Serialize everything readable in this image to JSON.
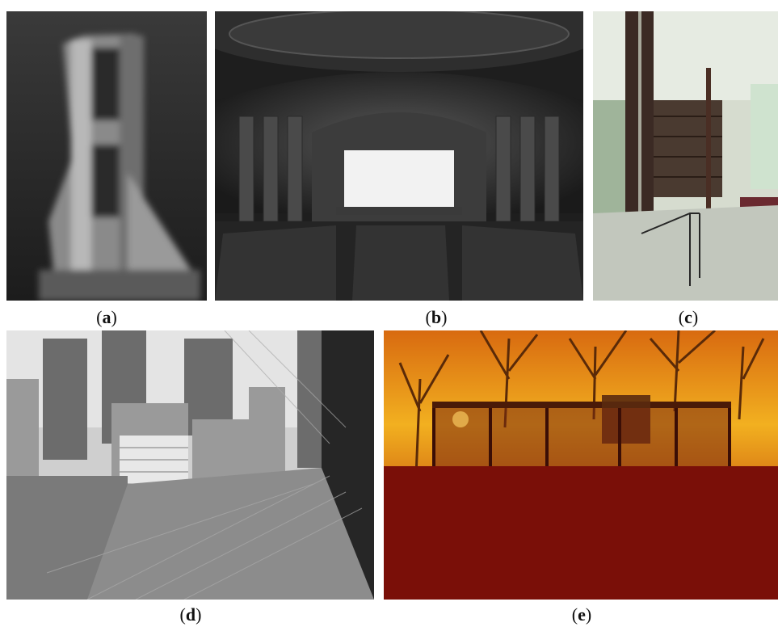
{
  "figure": {
    "panels": [
      {
        "id": "a",
        "caption_open": "(",
        "caption_letter": "a",
        "caption_close": ")"
      },
      {
        "id": "b",
        "caption_open": "(",
        "caption_letter": "b",
        "caption_close": ")"
      },
      {
        "id": "c",
        "caption_open": "(",
        "caption_letter": "c",
        "caption_close": ")"
      },
      {
        "id": "d",
        "caption_open": "(",
        "caption_letter": "d",
        "caption_close": ")"
      },
      {
        "id": "e",
        "caption_open": "(",
        "caption_letter": "e",
        "caption_close": ")"
      }
    ]
  }
}
